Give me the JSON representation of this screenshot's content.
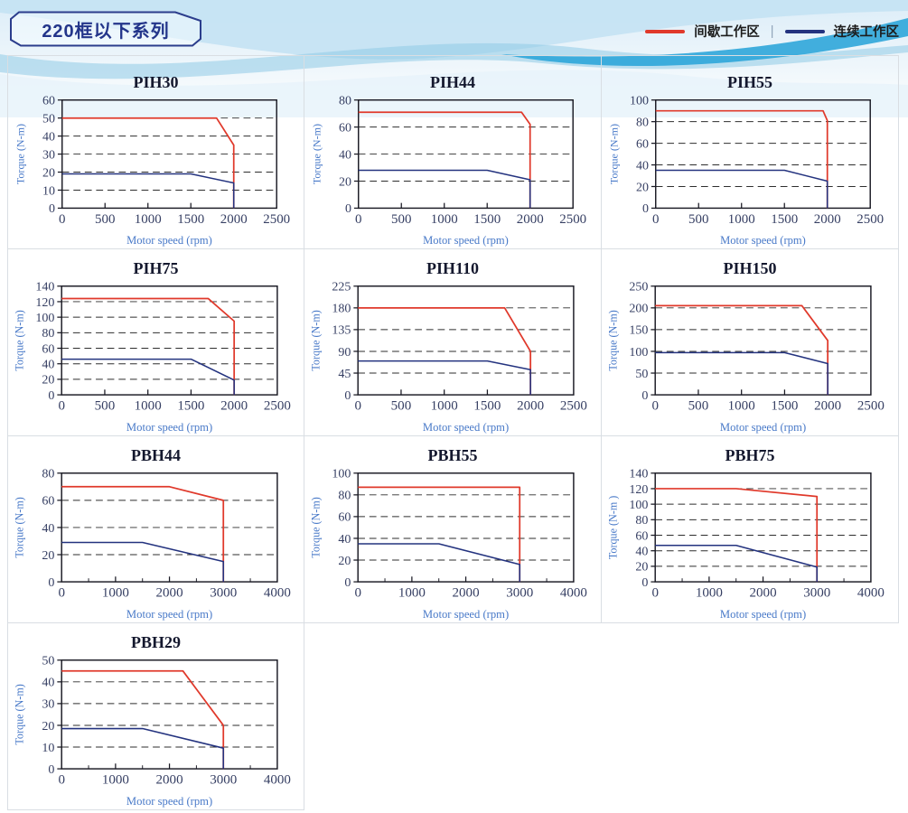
{
  "header": {
    "title": "220框以下系列"
  },
  "legend": {
    "intermittent": {
      "label": "间歇工作区",
      "color": "#e0392b"
    },
    "divider": "|",
    "continuous": {
      "label": "连续工作区",
      "color": "#24337f"
    }
  },
  "style_colors": {
    "intermittent_line": "#e0392b",
    "continuous_line": "#24337f",
    "axis_frame": "#1a1a24",
    "grid_dash": "#2e2e2e",
    "tick_label": "#363f63",
    "axis_name": "#4879c8",
    "panel_border": "#d9dee3"
  },
  "chart_data": [
    {
      "type": "line",
      "title": "PIH30",
      "xlabel": "Motor speed (rpm)",
      "ylabel": "Torque (N-m)",
      "xlim": [
        0,
        2500
      ],
      "xticks": [
        0,
        500,
        1000,
        1500,
        2000,
        2500
      ],
      "xminor": [],
      "ylim": [
        0,
        60
      ],
      "yticks": [
        0,
        10,
        20,
        30,
        40,
        50,
        60
      ],
      "grid": "dashed-horizontal",
      "legend_position": "none",
      "series": [
        {
          "name": "间歇工作区",
          "color": "#e0392b",
          "points": [
            [
              0,
              50
            ],
            [
              1800,
              50
            ],
            [
              2000,
              35
            ],
            [
              2000,
              0
            ]
          ]
        },
        {
          "name": "连续工作区",
          "color": "#24337f",
          "points": [
            [
              0,
              19
            ],
            [
              1500,
              19
            ],
            [
              2000,
              14
            ],
            [
              2000,
              0
            ]
          ]
        }
      ]
    },
    {
      "type": "line",
      "title": "PIH44",
      "xlabel": "Motor speed (rpm)",
      "ylabel": "Torque (N-m)",
      "xlim": [
        0,
        2500
      ],
      "xticks": [
        0,
        500,
        1000,
        1500,
        2000,
        2500
      ],
      "xminor": [],
      "ylim": [
        0,
        80
      ],
      "yticks": [
        0,
        20,
        40,
        60,
        80
      ],
      "grid": "dashed-horizontal",
      "legend_position": "none",
      "series": [
        {
          "name": "间歇工作区",
          "color": "#e0392b",
          "points": [
            [
              0,
              71
            ],
            [
              1900,
              71
            ],
            [
              2000,
              62
            ],
            [
              2000,
              0
            ]
          ]
        },
        {
          "name": "连续工作区",
          "color": "#24337f",
          "points": [
            [
              0,
              28
            ],
            [
              1500,
              28
            ],
            [
              2000,
              21
            ],
            [
              2000,
              0
            ]
          ]
        }
      ]
    },
    {
      "type": "line",
      "title": "PIH55",
      "xlabel": "Motor speed (rpm)",
      "ylabel": "Torque (N-m)",
      "xlim": [
        0,
        2500
      ],
      "xticks": [
        0,
        500,
        1000,
        1500,
        2000,
        2500
      ],
      "xminor": [],
      "ylim": [
        0,
        100
      ],
      "yticks": [
        0,
        20,
        40,
        60,
        80,
        100
      ],
      "grid": "dashed-horizontal",
      "legend_position": "none",
      "series": [
        {
          "name": "间歇工作区",
          "color": "#e0392b",
          "points": [
            [
              0,
              90
            ],
            [
              1950,
              90
            ],
            [
              2000,
              81
            ],
            [
              2000,
              0
            ]
          ]
        },
        {
          "name": "连续工作区",
          "color": "#24337f",
          "points": [
            [
              0,
              35
            ],
            [
              1500,
              35
            ],
            [
              2000,
              25
            ],
            [
              2000,
              0
            ]
          ]
        }
      ]
    },
    {
      "type": "line",
      "title": "PIH75",
      "xlabel": "Motor speed (rpm)",
      "ylabel": "Torque (N-m)",
      "xlim": [
        0,
        2500
      ],
      "xticks": [
        0,
        500,
        1000,
        1500,
        2000,
        2500
      ],
      "xminor": [],
      "ylim": [
        0,
        140
      ],
      "yticks": [
        0,
        20,
        40,
        60,
        80,
        100,
        120,
        140
      ],
      "grid": "dashed-horizontal",
      "legend_position": "none",
      "series": [
        {
          "name": "间歇工作区",
          "color": "#e0392b",
          "points": [
            [
              0,
              124
            ],
            [
              1700,
              124
            ],
            [
              2000,
              95
            ],
            [
              2000,
              0
            ]
          ]
        },
        {
          "name": "连续工作区",
          "color": "#24337f",
          "points": [
            [
              0,
              46
            ],
            [
              1500,
              46
            ],
            [
              2000,
              19
            ],
            [
              2000,
              0
            ]
          ]
        }
      ]
    },
    {
      "type": "line",
      "title": "PIH110",
      "xlabel": "Motor speed (rpm)",
      "ylabel": "Torque (N-m)",
      "xlim": [
        0,
        2500
      ],
      "xticks": [
        0,
        500,
        1000,
        1500,
        2000,
        2500
      ],
      "xminor": [],
      "ylim": [
        0,
        225
      ],
      "yticks": [
        0,
        45,
        90,
        135,
        180,
        225
      ],
      "grid": "dashed-horizontal",
      "legend_position": "none",
      "series": [
        {
          "name": "间歇工作区",
          "color": "#e0392b",
          "points": [
            [
              0,
              180
            ],
            [
              1700,
              180
            ],
            [
              2000,
              90
            ],
            [
              2000,
              0
            ]
          ]
        },
        {
          "name": "连续工作区",
          "color": "#24337f",
          "points": [
            [
              0,
              70
            ],
            [
              1500,
              70
            ],
            [
              2000,
              52
            ],
            [
              2000,
              0
            ]
          ]
        }
      ]
    },
    {
      "type": "line",
      "title": "PIH150",
      "xlabel": "Motor speed (rpm)",
      "ylabel": "Torque (N-m)",
      "xlim": [
        0,
        2500
      ],
      "xticks": [
        0,
        500,
        1000,
        1500,
        2000,
        2500
      ],
      "xminor": [],
      "ylim": [
        0,
        250
      ],
      "yticks": [
        0,
        50,
        100,
        150,
        200,
        250
      ],
      "grid": "dashed-horizontal",
      "legend_position": "none",
      "series": [
        {
          "name": "间歇工作区",
          "color": "#e0392b",
          "points": [
            [
              0,
              205
            ],
            [
              1700,
              205
            ],
            [
              2000,
              125
            ],
            [
              2000,
              0
            ]
          ]
        },
        {
          "name": "连续工作区",
          "color": "#24337f",
          "points": [
            [
              0,
              97
            ],
            [
              1500,
              97
            ],
            [
              2000,
              72
            ],
            [
              2000,
              0
            ]
          ]
        }
      ]
    },
    {
      "type": "line",
      "title": "PBH44",
      "xlabel": "Motor speed (rpm)",
      "ylabel": "Torque (N-m)",
      "xlim": [
        0,
        4000
      ],
      "xticks": [
        0,
        1000,
        2000,
        3000,
        4000
      ],
      "xminor": [
        500,
        1500,
        2500,
        3500
      ],
      "ylim": [
        0,
        80
      ],
      "yticks": [
        0,
        20,
        40,
        60,
        80
      ],
      "grid": "dashed-horizontal",
      "legend_position": "none",
      "series": [
        {
          "name": "间歇工作区",
          "color": "#e0392b",
          "points": [
            [
              0,
              70
            ],
            [
              2000,
              70
            ],
            [
              3000,
              60
            ],
            [
              3000,
              0
            ]
          ]
        },
        {
          "name": "连续工作区",
          "color": "#24337f",
          "points": [
            [
              0,
              29
            ],
            [
              1500,
              29
            ],
            [
              3000,
              15
            ],
            [
              3000,
              0
            ]
          ]
        }
      ]
    },
    {
      "type": "line",
      "title": "PBH55",
      "xlabel": "Motor speed (rpm)",
      "ylabel": "Torque (N-m)",
      "xlim": [
        0,
        4000
      ],
      "xticks": [
        0,
        1000,
        2000,
        3000,
        4000
      ],
      "xminor": [
        500,
        1500,
        2500,
        3500
      ],
      "ylim": [
        0,
        100
      ],
      "yticks": [
        0,
        20,
        40,
        60,
        80,
        100
      ],
      "grid": "dashed-horizontal",
      "legend_position": "none",
      "series": [
        {
          "name": "间歇工作区",
          "color": "#e0392b",
          "points": [
            [
              0,
              87
            ],
            [
              3000,
              87
            ],
            [
              3000,
              0
            ]
          ]
        },
        {
          "name": "连续工作区",
          "color": "#24337f",
          "points": [
            [
              0,
              35
            ],
            [
              1500,
              35
            ],
            [
              3000,
              16
            ],
            [
              3000,
              0
            ]
          ]
        }
      ]
    },
    {
      "type": "line",
      "title": "PBH75",
      "xlabel": "Motor speed (rpm)",
      "ylabel": "Torque (N-m )",
      "xlim": [
        0,
        4000
      ],
      "xticks": [
        0,
        1000,
        2000,
        3000,
        4000
      ],
      "xminor": [
        500,
        1500,
        2500,
        3500
      ],
      "ylim": [
        0,
        140
      ],
      "yticks": [
        0,
        20,
        40,
        60,
        80,
        100,
        120,
        140
      ],
      "grid": "dashed-horizontal",
      "legend_position": "none",
      "series": [
        {
          "name": "间歇工作区",
          "color": "#e0392b",
          "points": [
            [
              0,
              120
            ],
            [
              1500,
              120
            ],
            [
              3000,
              110
            ],
            [
              3000,
              0
            ]
          ]
        },
        {
          "name": "连续工作区",
          "color": "#24337f",
          "points": [
            [
              0,
              47
            ],
            [
              1500,
              47
            ],
            [
              3000,
              19
            ],
            [
              3000,
              0
            ]
          ]
        }
      ]
    },
    {
      "type": "line",
      "title": "PBH29",
      "xlabel": "Motor speed (rpm)",
      "ylabel": "Torque (N-m)",
      "xlim": [
        0,
        4000
      ],
      "xticks": [
        0,
        1000,
        2000,
        3000,
        4000
      ],
      "xminor": [
        500,
        1500,
        2500,
        3500
      ],
      "ylim": [
        0,
        50
      ],
      "yticks": [
        0,
        10,
        20,
        30,
        40,
        50
      ],
      "grid": "dashed-horizontal",
      "legend_position": "none",
      "series": [
        {
          "name": "间歇工作区",
          "color": "#e0392b",
          "points": [
            [
              0,
              45
            ],
            [
              2250,
              45
            ],
            [
              3000,
              20
            ],
            [
              3000,
              0
            ]
          ]
        },
        {
          "name": "连续工作区",
          "color": "#24337f",
          "points": [
            [
              0,
              18.5
            ],
            [
              1500,
              18.5
            ],
            [
              3000,
              9.5
            ],
            [
              3000,
              0
            ]
          ]
        }
      ]
    }
  ]
}
